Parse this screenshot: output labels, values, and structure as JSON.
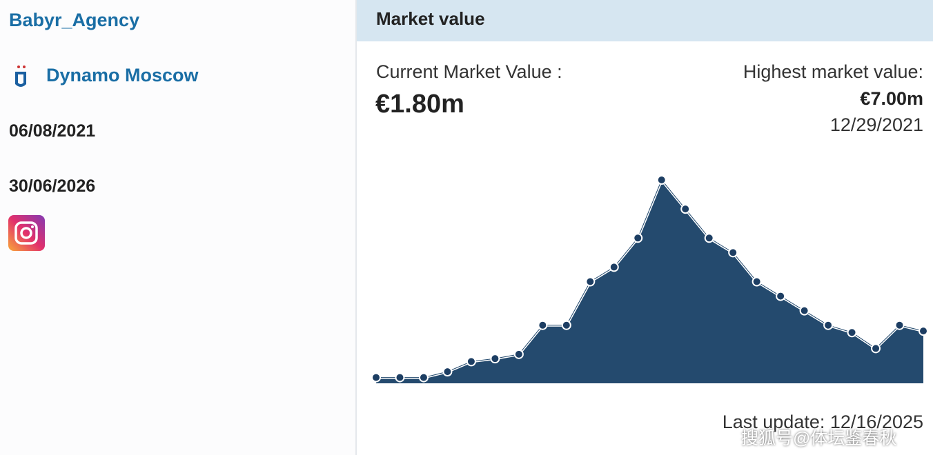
{
  "profile": {
    "agent": "Babyr_Agency",
    "club": "Dynamo Moscow",
    "joined": "06/08/2021",
    "contract_expires": "30/06/2026"
  },
  "market_value": {
    "title": "Market value",
    "current_label": "Current Market Value :",
    "current_value": "€1.80m",
    "highest_label": "Highest market value:",
    "highest_value": "€7.00m",
    "highest_date": "12/29/2021",
    "last_update": "Last update: 12/16/2025"
  },
  "chart_data": {
    "type": "area",
    "color": "#244a6e",
    "values": [
      0.2,
      0.2,
      0.2,
      0.4,
      0.75,
      0.85,
      1.0,
      2.0,
      2.0,
      3.5,
      4.0,
      5.0,
      7.0,
      6.0,
      5.0,
      4.5,
      3.5,
      3.0,
      2.5,
      2.0,
      1.75,
      1.2,
      2.0,
      1.8
    ]
  },
  "watermark": "搜狐号@体坛鉴春秋"
}
